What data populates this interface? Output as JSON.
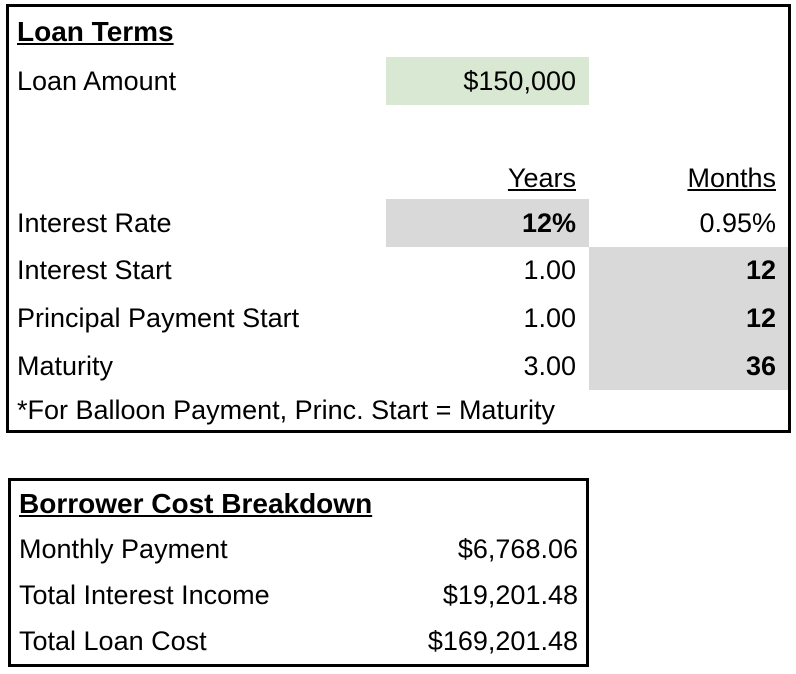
{
  "colors": {
    "input_green": "#d9e8d2",
    "input_gray": "#d9d9d9",
    "border": "#000000",
    "text": "#000000",
    "background": "#ffffff"
  },
  "loan_terms": {
    "title": "Loan Terms",
    "loan_amount": {
      "label": "Loan Amount",
      "value": "$150,000"
    },
    "columns": {
      "years": "Years",
      "months": "Months"
    },
    "rows": [
      {
        "label": "Interest Rate",
        "years": "12%",
        "months": "0.95%"
      },
      {
        "label": "Interest Start",
        "years": "1.00",
        "months": "12"
      },
      {
        "label": "Principal Payment Start",
        "years": "1.00",
        "months": "12"
      },
      {
        "label": "Maturity",
        "years": "3.00",
        "months": "36"
      }
    ],
    "footnote": "*For Balloon Payment, Princ. Start = Maturity"
  },
  "borrower_cost": {
    "title": "Borrower Cost Breakdown",
    "rows": [
      {
        "label": "Monthly Payment",
        "value": "$6,768.06"
      },
      {
        "label": "Total Interest Income",
        "value": "$19,201.48"
      },
      {
        "label": "Total Loan Cost",
        "value": "$169,201.48"
      }
    ]
  }
}
